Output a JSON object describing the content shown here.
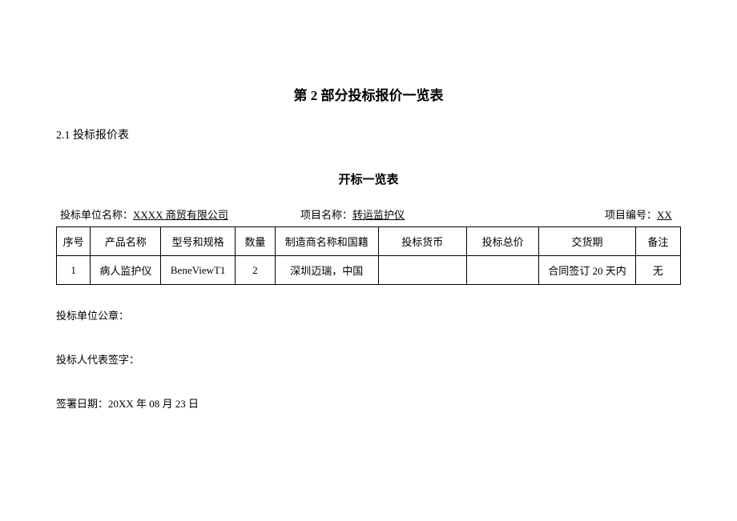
{
  "mainTitle": "第 2 部分投标报价一览表",
  "sectionTitle": "2.1 投标报价表",
  "subTitle": "开标一览表",
  "meta": {
    "bidderLabel": "投标单位名称：",
    "bidderName": "XXXX 商贸有限公司",
    "projectLabel": "项目名称：",
    "projectName": "转运监护仪",
    "projectNoLabel": "项目编号：",
    "projectNo": "XX"
  },
  "table": {
    "headers": {
      "seq": "序号",
      "name": "产品名称",
      "model": "型号和规格",
      "qty": "数量",
      "mfr": "制造商名称和国籍",
      "currency": "投标货币",
      "total": "投标总价",
      "delivery": "交货期",
      "remark": "备注"
    },
    "row": {
      "seq": "1",
      "name": "病人监护仪",
      "model": "BeneViewT1",
      "qty": "2",
      "mfr": "深圳迈瑞，中国",
      "currency": "",
      "total": "",
      "delivery": "合同签订 20 天内",
      "remark": "无"
    }
  },
  "footer": {
    "seal": "投标单位公章：",
    "sign": "投标人代表签字：",
    "date": "签署日期：20XX 年 08 月 23 日"
  }
}
